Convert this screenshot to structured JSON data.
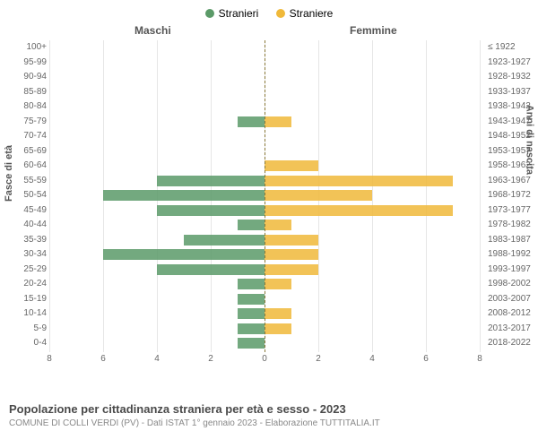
{
  "legend": {
    "male": {
      "label": "Stranieri",
      "color": "#5b9a68"
    },
    "female": {
      "label": "Straniere",
      "color": "#f0b93a"
    }
  },
  "headers": {
    "male": "Maschi",
    "female": "Femmine"
  },
  "y_left_title": "Fasce di età",
  "y_right_title": "Anni di nascita",
  "footer_title": "Popolazione per cittadinanza straniera per età e sesso - 2023",
  "footer_sub": "COMUNE DI COLLI VERDI (PV) - Dati ISTAT 1° gennaio 2023 - Elaborazione TUTTITALIA.IT",
  "chart": {
    "type": "population-pyramid",
    "x_max": 8,
    "x_ticks": [
      8,
      6,
      4,
      2,
      0,
      2,
      4,
      6,
      8
    ],
    "grid_color": "#e6e6e6",
    "center_color": "#8a7a3a",
    "background_color": "#ffffff",
    "label_fontsize": 10,
    "rows": [
      {
        "age": "100+",
        "birth": "≤ 1922",
        "male": 0,
        "female": 0
      },
      {
        "age": "95-99",
        "birth": "1923-1927",
        "male": 0,
        "female": 0
      },
      {
        "age": "90-94",
        "birth": "1928-1932",
        "male": 0,
        "female": 0
      },
      {
        "age": "85-89",
        "birth": "1933-1937",
        "male": 0,
        "female": 0
      },
      {
        "age": "80-84",
        "birth": "1938-1942",
        "male": 0,
        "female": 0
      },
      {
        "age": "75-79",
        "birth": "1943-1947",
        "male": 1,
        "female": 1
      },
      {
        "age": "70-74",
        "birth": "1948-1952",
        "male": 0,
        "female": 0
      },
      {
        "age": "65-69",
        "birth": "1953-1957",
        "male": 0,
        "female": 0
      },
      {
        "age": "60-64",
        "birth": "1958-1962",
        "male": 0,
        "female": 2
      },
      {
        "age": "55-59",
        "birth": "1963-1967",
        "male": 4,
        "female": 7
      },
      {
        "age": "50-54",
        "birth": "1968-1972",
        "male": 6,
        "female": 4
      },
      {
        "age": "45-49",
        "birth": "1973-1977",
        "male": 4,
        "female": 7
      },
      {
        "age": "40-44",
        "birth": "1978-1982",
        "male": 1,
        "female": 1
      },
      {
        "age": "35-39",
        "birth": "1983-1987",
        "male": 3,
        "female": 2
      },
      {
        "age": "30-34",
        "birth": "1988-1992",
        "male": 6,
        "female": 2
      },
      {
        "age": "25-29",
        "birth": "1993-1997",
        "male": 4,
        "female": 2
      },
      {
        "age": "20-24",
        "birth": "1998-2002",
        "male": 1,
        "female": 1
      },
      {
        "age": "15-19",
        "birth": "2003-2007",
        "male": 1,
        "female": 0
      },
      {
        "age": "10-14",
        "birth": "2008-2012",
        "male": 1,
        "female": 1
      },
      {
        "age": "5-9",
        "birth": "2013-2017",
        "male": 1,
        "female": 1
      },
      {
        "age": "0-4",
        "birth": "2018-2022",
        "male": 1,
        "female": 0
      }
    ]
  }
}
